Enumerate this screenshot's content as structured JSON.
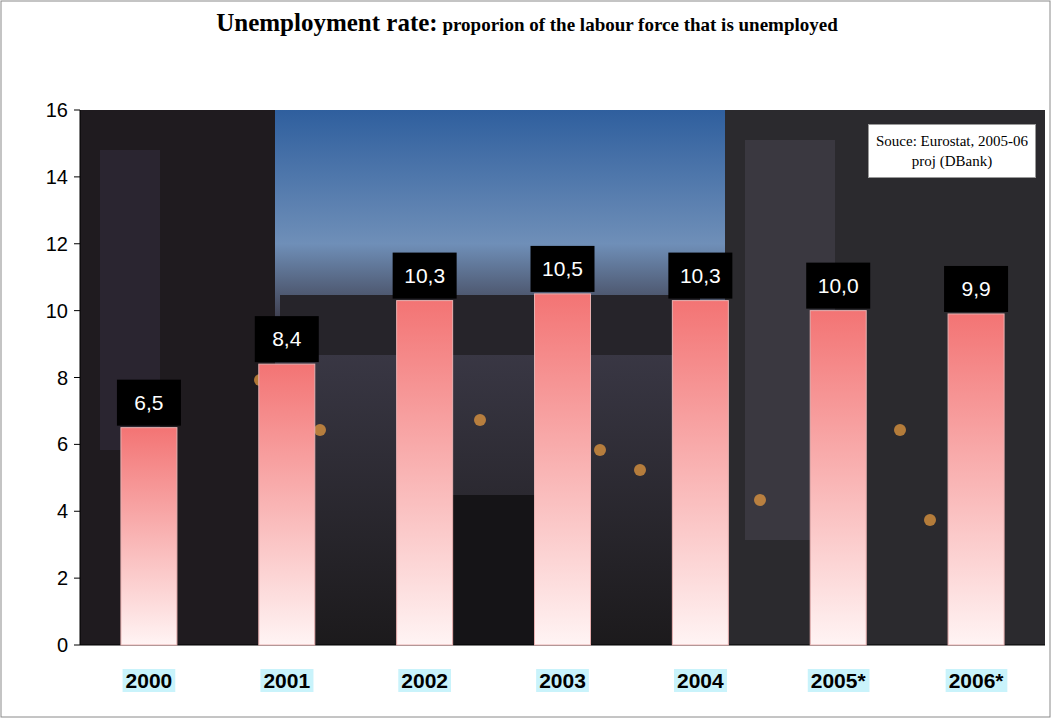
{
  "chart_data": {
    "type": "bar",
    "title": "Unemployment rate: proporion of the labour force that is unemployed",
    "annotations": [
      "Souce: Eurostat, 2005-06 proj (DBank)"
    ],
    "categories": [
      "2000",
      "2001",
      "2002",
      "2003",
      "2004",
      "2005*",
      "2006*"
    ],
    "values": [
      6.5,
      8.4,
      10.3,
      10.5,
      10.3,
      10.0,
      9.9
    ],
    "value_labels": [
      "6,5",
      "8,4",
      "10,3",
      "10,5",
      "10,3",
      "10,0",
      "9,9"
    ],
    "color": "#f37474",
    "ylim": [
      0,
      16
    ],
    "yticks": [
      0,
      2,
      4,
      6,
      8,
      10,
      12,
      14,
      16
    ],
    "grid": false,
    "data_labels": true
  }
}
